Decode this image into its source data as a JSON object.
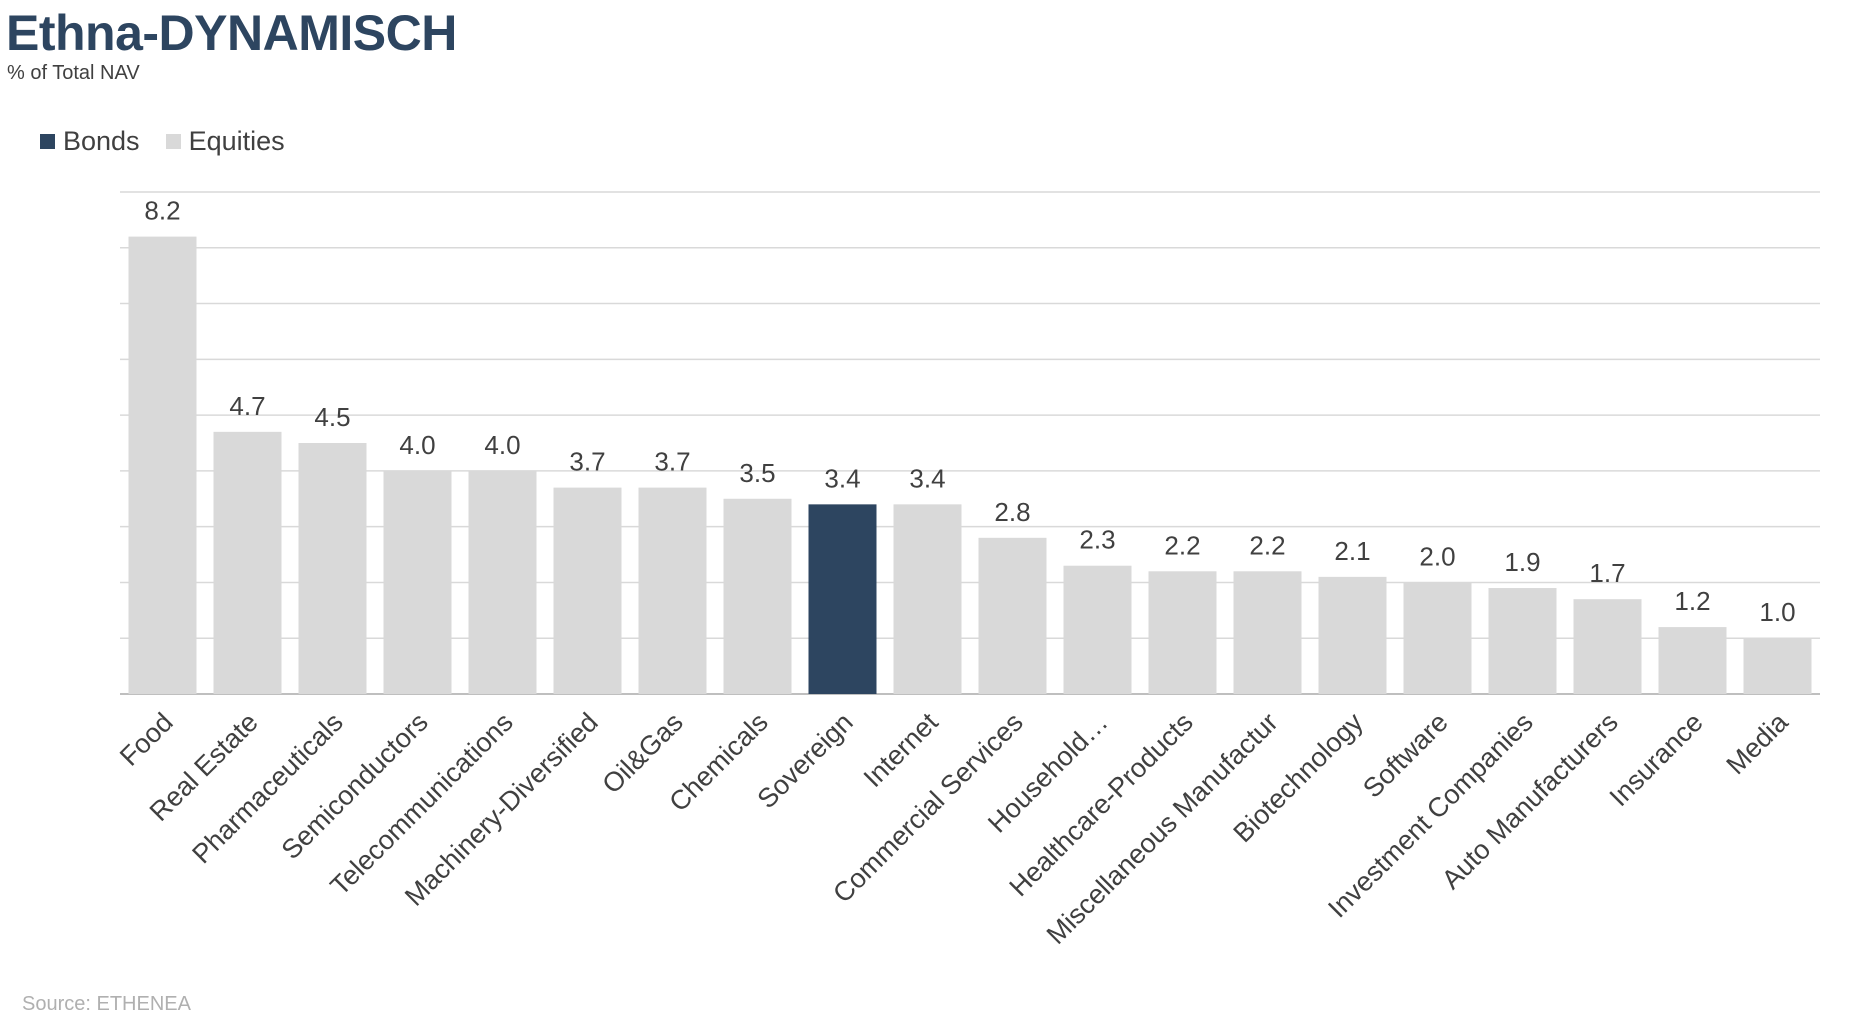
{
  "header": {
    "title": "Ethna-DYNAMISCH",
    "subtitle": "% of Total NAV"
  },
  "legend": {
    "items": [
      {
        "label": "Bonds",
        "color": "#2d4560"
      },
      {
        "label": "Equities",
        "color": "#d9d9d9"
      }
    ]
  },
  "footer": {
    "source": "Source: ETHENEA"
  },
  "chart_data": {
    "type": "bar",
    "categories": [
      "Food",
      "Real Estate",
      "Pharmaceuticals",
      "Semiconductors",
      "Telecommunications",
      "Machinery-Diversified",
      "Oil&Gas",
      "Chemicals",
      "Sovereign",
      "Internet",
      "Commercial Services",
      "Household…",
      "Healthcare-Products",
      "Miscellaneous Manufactur",
      "Biotechnology",
      "Software",
      "Investment Companies",
      "Auto Manufacturers",
      "Insurance",
      "Media"
    ],
    "values": [
      8.2,
      4.7,
      4.5,
      4.0,
      4.0,
      3.7,
      3.7,
      3.5,
      3.4,
      3.4,
      2.8,
      2.3,
      2.2,
      2.2,
      2.1,
      2.0,
      1.9,
      1.7,
      1.2,
      1.0
    ],
    "series_of_category": [
      "Equities",
      "Equities",
      "Equities",
      "Equities",
      "Equities",
      "Equities",
      "Equities",
      "Equities",
      "Bonds",
      "Equities",
      "Equities",
      "Equities",
      "Equities",
      "Equities",
      "Equities",
      "Equities",
      "Equities",
      "Equities",
      "Equities",
      "Equities"
    ],
    "ylim": [
      0,
      9
    ],
    "ytick_step": 1,
    "grid": true,
    "legend_position": "top-left"
  }
}
